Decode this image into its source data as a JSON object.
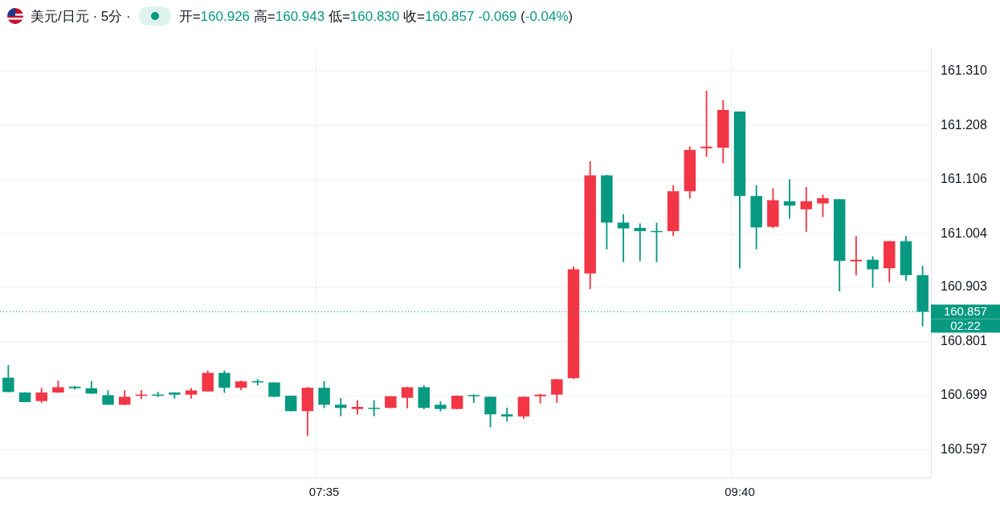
{
  "chart_data": {
    "type": "candlestick",
    "title": "美元/日元 · 5分 ·",
    "subtitle": "开=160.926 高=160.943 低=160.830 收=160.857 -0.069 (-0.04%)",
    "categories": [
      null,
      null,
      null,
      null,
      null,
      null,
      null,
      null,
      null,
      null,
      null,
      null,
      null,
      null,
      null,
      null,
      null,
      null,
      null,
      "07:35",
      null,
      null,
      null,
      null,
      null,
      null,
      null,
      null,
      null,
      null,
      null,
      null,
      null,
      null,
      null,
      null,
      null,
      null,
      null,
      null,
      null,
      null,
      null,
      null,
      "09:40",
      null,
      null,
      null,
      null,
      null,
      null,
      null,
      null,
      null,
      null,
      null
    ],
    "ohlc": [
      [
        160.733,
        160.756,
        160.706,
        160.706
      ],
      [
        160.705,
        160.705,
        160.687,
        160.687
      ],
      [
        160.689,
        160.713,
        160.686,
        160.705
      ],
      [
        160.705,
        160.727,
        160.705,
        160.715
      ],
      [
        160.716,
        160.717,
        160.711,
        160.713
      ],
      [
        160.713,
        160.726,
        160.703,
        160.703
      ],
      [
        160.7,
        160.709,
        160.682,
        160.682
      ],
      [
        160.682,
        160.709,
        160.682,
        160.697
      ],
      [
        160.699,
        160.709,
        160.693,
        160.701
      ],
      [
        160.701,
        160.706,
        160.697,
        160.699
      ],
      [
        160.705,
        160.705,
        160.694,
        160.701
      ],
      [
        160.701,
        160.713,
        160.694,
        160.709
      ],
      [
        160.707,
        160.746,
        160.707,
        160.742
      ],
      [
        160.742,
        160.746,
        160.705,
        160.714
      ],
      [
        160.714,
        160.727,
        160.71,
        160.726
      ],
      [
        160.726,
        160.73,
        160.719,
        160.724
      ],
      [
        160.724,
        160.724,
        160.697,
        160.697
      ],
      [
        160.699,
        160.699,
        160.67,
        160.67
      ],
      [
        160.67,
        160.715,
        160.624,
        160.714
      ],
      [
        160.714,
        160.726,
        160.676,
        160.682
      ],
      [
        160.682,
        160.694,
        160.661,
        160.676
      ],
      [
        160.674,
        160.69,
        160.664,
        160.678
      ],
      [
        160.676,
        160.69,
        160.661,
        160.674
      ],
      [
        160.676,
        160.698,
        160.676,
        160.698
      ],
      [
        160.695,
        160.715,
        160.676,
        160.715
      ],
      [
        160.715,
        160.718,
        160.674,
        160.676
      ],
      [
        160.682,
        160.688,
        160.67,
        160.674
      ],
      [
        160.674,
        160.699,
        160.674,
        160.699
      ],
      [
        160.699,
        160.701,
        160.686,
        160.698
      ],
      [
        160.697,
        160.697,
        160.64,
        160.664
      ],
      [
        160.664,
        160.676,
        160.651,
        160.66
      ],
      [
        160.66,
        160.697,
        160.656,
        160.697
      ],
      [
        160.698,
        160.702,
        160.685,
        160.701
      ],
      [
        160.701,
        160.73,
        160.686,
        160.73
      ],
      [
        160.732,
        160.942,
        160.731,
        160.937
      ],
      [
        160.929,
        161.14,
        160.9,
        161.114
      ],
      [
        161.114,
        161.114,
        160.975,
        161.025
      ],
      [
        161.025,
        161.04,
        160.951,
        161.014
      ],
      [
        161.015,
        161.023,
        160.953,
        161.009
      ],
      [
        161.009,
        161.024,
        160.951,
        161.007
      ],
      [
        161.009,
        161.095,
        161.0,
        161.084
      ],
      [
        161.084,
        161.168,
        161.071,
        161.162
      ],
      [
        161.165,
        161.273,
        161.149,
        161.168
      ],
      [
        161.166,
        161.255,
        161.137,
        161.237
      ],
      [
        161.234,
        161.234,
        160.939,
        161.075
      ],
      [
        161.075,
        161.095,
        160.975,
        161.016
      ],
      [
        161.017,
        161.089,
        161.015,
        161.067
      ],
      [
        161.065,
        161.106,
        161.033,
        161.057
      ],
      [
        161.05,
        161.091,
        161.008,
        161.065
      ],
      [
        161.061,
        161.077,
        161.036,
        161.071
      ],
      [
        161.069,
        161.069,
        160.896,
        160.953
      ],
      [
        160.952,
        160.999,
        160.926,
        160.955
      ],
      [
        160.955,
        160.961,
        160.903,
        160.937
      ],
      [
        160.939,
        160.99,
        160.913,
        160.99
      ],
      [
        160.99,
        160.999,
        160.916,
        160.926
      ],
      [
        160.926,
        160.943,
        160.83,
        160.857
      ]
    ],
    "colors": [
      "#089981",
      "#089981",
      "#f23645",
      "#f23645",
      "#089981",
      "#089981",
      "#089981",
      "#f23645",
      "#f23645",
      "#089981",
      "#089981",
      "#f23645",
      "#f23645",
      "#089981",
      "#f23645",
      "#089981",
      "#089981",
      "#089981",
      "#f23645",
      "#089981",
      "#089981",
      "#f23645",
      "#089981",
      "#f23645",
      "#f23645",
      "#089981",
      "#089981",
      "#f23645",
      "#089981",
      "#089981",
      "#089981",
      "#f23645",
      "#f23645",
      "#f23645",
      "#f23645",
      "#f23645",
      "#089981",
      "#089981",
      "#089981",
      "#089981",
      "#f23645",
      "#f23645",
      "#f23645",
      "#f23645",
      "#089981",
      "#089981",
      "#f23645",
      "#089981",
      "#f23645",
      "#f23645",
      "#089981",
      "#f23645",
      "#089981",
      "#f23645",
      "#089981",
      "#089981"
    ],
    "ylim": [
      160.545,
      161.351
    ],
    "yticks": [
      160.597,
      160.699,
      160.801,
      160.903,
      161.004,
      161.106,
      161.208,
      {
        "value": 161.31,
        "label": "161.310"
      }
    ],
    "grid": true,
    "legend": false,
    "ref_lines": [
      {
        "axis": "y",
        "value": 160.857,
        "label": "160.857",
        "color": "#089981",
        "line_style": "dotted"
      }
    ],
    "annotations": [
      "02:22"
    ]
  }
}
